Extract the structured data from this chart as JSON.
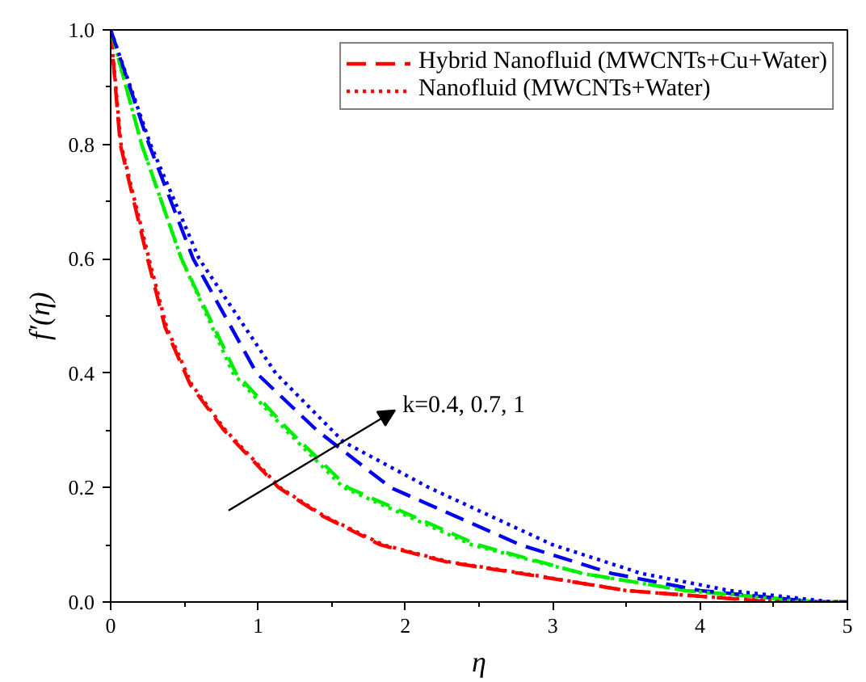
{
  "chart_data": {
    "type": "line",
    "xlabel": "η",
    "ylabel": "f′(η)",
    "xlim": [
      0,
      5
    ],
    "ylim": [
      0,
      1.0
    ],
    "xticks": [
      0,
      1,
      2,
      3,
      4,
      5
    ],
    "yticks": [
      {
        "value": 0,
        "label": "0.0"
      },
      {
        "value": 0.2,
        "label": "0.2"
      },
      {
        "value": 0.4,
        "label": "0.4"
      },
      {
        "value": 0.6,
        "label": "0.6"
      },
      {
        "value": 0.8,
        "label": "0.8"
      },
      {
        "value": 1.0,
        "label": "1.0"
      }
    ],
    "grid": false,
    "legend": "top right",
    "marker": "none",
    "annotations": [
      "k=0.4, 0.7, 1"
    ],
    "series": [
      {
        "name": "Hybrid Nanofluid (MWCNTs+Cu+Water)",
        "color": "#ff0000",
        "line_style": "dashed",
        "x": [
          0,
          0.065,
          0.25,
          0.37,
          0.54,
          0.77,
          1.14,
          1.44,
          1.83,
          2.28,
          2.78,
          3.5,
          4.0,
          4.5,
          5
        ],
        "values": [
          1,
          0.8,
          0.6,
          0.48,
          0.38,
          0.3,
          0.2,
          0.15,
          0.1,
          0.07,
          0.05,
          0.02,
          0.01,
          0.0,
          0.0
        ]
      },
      {
        "color": "#00ee00",
        "line_style": "dashed",
        "x": [
          0,
          0.21,
          0.48,
          0.85,
          1.21,
          1.61,
          2.49,
          3.2,
          3.9,
          4.8,
          5
        ],
        "values": [
          1,
          0.8,
          0.6,
          0.4,
          0.3,
          0.2,
          0.1,
          0.05,
          0.02,
          0.0,
          0.0
        ]
      },
      {
        "color": "#0000ee",
        "line_style": "dashed",
        "x": [
          0,
          0.26,
          0.56,
          0.99,
          1.4,
          1.9,
          2.78,
          3.4,
          4.0,
          4.8,
          5
        ],
        "values": [
          1,
          0.8,
          0.6,
          0.4,
          0.3,
          0.2,
          0.1,
          0.05,
          0.02,
          0.0,
          0.0
        ]
      },
      {
        "name": "Nanofluid (MWCNTs+Water)",
        "color": "#ff0000",
        "line_style": "dotted",
        "x": [
          0,
          0.07,
          0.26,
          0.38,
          0.55,
          0.78,
          1.15,
          1.45,
          1.85,
          2.3,
          2.8,
          3.5,
          4.0,
          4.6,
          4.95
        ],
        "values": [
          1,
          0.8,
          0.6,
          0.48,
          0.38,
          0.3,
          0.2,
          0.15,
          0.1,
          0.07,
          0.05,
          0.02,
          0.01,
          0.0,
          0.0
        ]
      },
      {
        "color": "#00ee00",
        "line_style": "dotted",
        "x": [
          0,
          0.21,
          0.48,
          0.83,
          1.19,
          1.58,
          2.45,
          3.2,
          3.9,
          4.8,
          4.95
        ],
        "values": [
          1,
          0.8,
          0.6,
          0.4,
          0.3,
          0.2,
          0.1,
          0.05,
          0.02,
          0.0,
          0.0
        ]
      },
      {
        "color": "#0000ee",
        "line_style": "dotted",
        "x": [
          0,
          0.27,
          0.6,
          1.12,
          1.58,
          2.16,
          3.0,
          3.6,
          4.2,
          4.9,
          4.95
        ],
        "values": [
          1,
          0.8,
          0.6,
          0.4,
          0.28,
          0.2,
          0.1,
          0.05,
          0.02,
          0.0,
          0.0
        ]
      }
    ]
  }
}
